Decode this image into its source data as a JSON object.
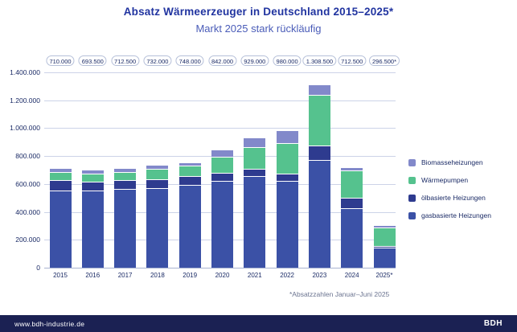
{
  "header": {
    "title": "Absatz Wärmeerzeuger in Deutschland 2015–2025*",
    "subtitle": "Markt 2025 stark rückläufig"
  },
  "chart_data": {
    "type": "bar",
    "stacked": true,
    "title": "Absatz Wärmeerzeuger in Deutschland 2015–2025*",
    "subtitle": "Markt 2025 stark rückläufig",
    "categories": [
      "2015",
      "2016",
      "2017",
      "2018",
      "2019",
      "2020",
      "2021",
      "2022",
      "2023",
      "2024",
      "2025*"
    ],
    "total_labels": [
      "710.000",
      "693.500",
      "712.500",
      "732.000",
      "748.000",
      "842.000",
      "929.000",
      "980.000",
      "1.308.500",
      "712.500",
      "296.500*"
    ],
    "totals": [
      710000,
      693500,
      712500,
      732000,
      748000,
      842000,
      929000,
      980000,
      1308500,
      712500,
      296500
    ],
    "series": [
      {
        "name": "gasbasierte Heizungen",
        "color": "#3b51a6",
        "values": [
          549500,
          546500,
          560500,
          564000,
          585000,
          616000,
          652000,
          614500,
          768500,
          420500,
          140000
        ]
      },
      {
        "name": "ölbasierte Heizungen",
        "color": "#2e3b8f",
        "values": [
          73000,
          64000,
          65500,
          63000,
          62000,
          59000,
          53500,
          54000,
          103000,
          73000,
          9000
        ]
      },
      {
        "name": "Wärmepumpen",
        "color": "#55c28e",
        "values": [
          57500,
          56500,
          59500,
          76000,
          76500,
          113500,
          154500,
          218000,
          362000,
          196000,
          130000
        ]
      },
      {
        "name": "Biomasseheizungen",
        "color": "#8289ca",
        "values": [
          30000,
          26500,
          27000,
          29000,
          24500,
          53500,
          69000,
          93500,
          75000,
          23000,
          17500
        ]
      }
    ],
    "ylim": [
      0,
      1400000
    ],
    "ytick_step": 200000,
    "ytick_labels": [
      "0",
      "200.000",
      "400.000",
      "600.000",
      "800.000",
      "1.000.000",
      "1.200.000",
      "1.400.000"
    ],
    "grid": true,
    "legend_position": "right",
    "legend_order_top_to_bottom": [
      "Biomasseheizungen",
      "Wärmepumpen",
      "ölbasierte Heizungen",
      "gasbasierte Heizungen"
    ]
  },
  "footnote": "*Absatzzahlen Januar–Juni 2025",
  "footer": {
    "url": "www.bdh-industrie.de",
    "brand": "BDH"
  }
}
